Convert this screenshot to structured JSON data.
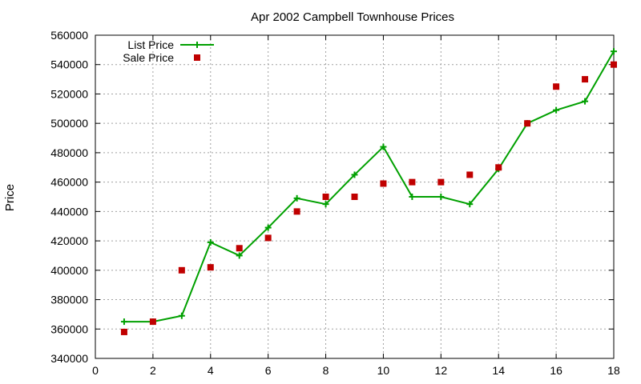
{
  "chart_data": {
    "type": "line",
    "title": "Apr 2002 Campbell Townhouse Prices",
    "xlabel": "",
    "ylabel": "Price",
    "xlim": [
      0,
      18
    ],
    "ylim": [
      340000,
      560000
    ],
    "xticks": [
      "0",
      "2",
      "4",
      "6",
      "8",
      "10",
      "12",
      "14",
      "16",
      "18"
    ],
    "yticks": [
      "340000",
      "360000",
      "380000",
      "400000",
      "420000",
      "440000",
      "460000",
      "480000",
      "500000",
      "520000",
      "540000",
      "560000"
    ],
    "grid": true,
    "legend_position": "top-left",
    "series": [
      {
        "name": "List Price",
        "style": "lines+points",
        "color": "#00a000",
        "marker": "plus",
        "x": [
          1,
          2,
          3,
          4,
          5,
          6,
          7,
          8,
          9,
          10,
          11,
          12,
          13,
          14,
          15,
          16,
          17,
          18
        ],
        "values": [
          365000,
          365000,
          369000,
          419000,
          410000,
          429000,
          449000,
          445000,
          465000,
          484000,
          450000,
          450000,
          445000,
          469000,
          500000,
          509000,
          515000,
          549000
        ]
      },
      {
        "name": "Sale Price",
        "style": "points",
        "color": "#c00000",
        "marker": "square",
        "x": [
          1,
          2,
          3,
          4,
          5,
          6,
          7,
          8,
          9,
          10,
          11,
          12,
          13,
          14,
          15,
          16,
          17,
          18
        ],
        "values": [
          358000,
          365000,
          400000,
          402000,
          415000,
          422000,
          440000,
          450000,
          450000,
          459000,
          460000,
          460000,
          465000,
          470000,
          500000,
          525000,
          530000,
          540000
        ]
      }
    ]
  }
}
